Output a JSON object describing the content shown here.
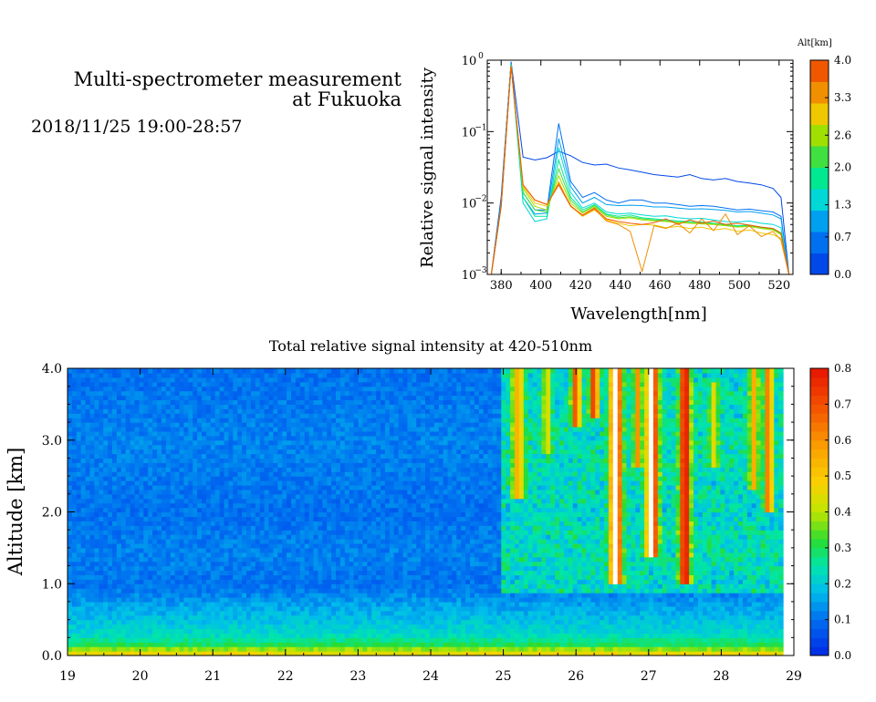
{
  "header": {
    "title_line1": "Multi-spectrometer measurement",
    "title_line2": "at Fukuoka",
    "date_range": "2018/11/25 19:00-28:57"
  },
  "spectrum_chart": {
    "ylabel": "Relative signal intensity",
    "xlabel": "Wavelength[nm]",
    "x_ticks": [
      "380",
      "400",
      "420",
      "440",
      "460",
      "480",
      "500",
      "520"
    ],
    "y_ticks": [
      {
        "base": "10",
        "exp": "0"
      },
      {
        "base": "10",
        "exp": "−1"
      },
      {
        "base": "10",
        "exp": "−2"
      },
      {
        "base": "10",
        "exp": "−3"
      }
    ],
    "colorbar_title": "Alt[km]",
    "colorbar_ticks": [
      "4.0",
      "3.3",
      "2.6",
      "2.0",
      "1.3",
      "0.7",
      "0.0"
    ]
  },
  "profile_chart": {
    "title": "Total relative signal intensity at 420-510nm",
    "ylabel": "Altitude [km]",
    "x_ticks": [
      "19",
      "20",
      "21",
      "22",
      "23",
      "24",
      "25",
      "26",
      "27",
      "28",
      "29"
    ],
    "y_ticks": [
      "0.0",
      "1.0",
      "2.0",
      "3.0",
      "4.0"
    ],
    "colorbar_ticks": [
      "0.0",
      "0.1",
      "0.2",
      "0.3",
      "0.4",
      "0.5",
      "0.6",
      "0.7",
      "0.8"
    ]
  },
  "chart_data": [
    {
      "type": "line",
      "title": "",
      "xlabel": "Wavelength[nm]",
      "ylabel": "Relative signal intensity",
      "y_scale": "log",
      "xlim": [
        373,
        527
      ],
      "ylim": [
        0.001,
        1
      ],
      "legend": "colorbar right, Alt[km] 0.0-4.0",
      "x": [
        375,
        380,
        385,
        391,
        397,
        403,
        409,
        415,
        421,
        427,
        433,
        439,
        445,
        451,
        457,
        463,
        469,
        475,
        481,
        487,
        493,
        499,
        505,
        511,
        517,
        521,
        525
      ],
      "series": [
        {
          "color": "#0048e8",
          "values": [
            0.001,
            0.012,
            0.95,
            0.044,
            0.04,
            0.043,
            0.053,
            0.046,
            0.037,
            0.034,
            0.035,
            0.031,
            0.029,
            0.027,
            0.025,
            0.024,
            0.023,
            0.025,
            0.022,
            0.021,
            0.022,
            0.02,
            0.019,
            0.018,
            0.016,
            0.012,
            0.001
          ]
        },
        {
          "color": "#0070f0",
          "values": [
            0.001,
            0.011,
            0.93,
            0.014,
            0.008,
            0.008,
            0.13,
            0.02,
            0.012,
            0.014,
            0.011,
            0.01,
            0.011,
            0.011,
            0.01,
            0.01,
            0.0095,
            0.009,
            0.0092,
            0.009,
            0.0085,
            0.008,
            0.0082,
            0.0078,
            0.0075,
            0.0065,
            0.001
          ]
        },
        {
          "color": "#00a0f0",
          "values": [
            0.001,
            0.01,
            0.9,
            0.012,
            0.007,
            0.0072,
            0.08,
            0.017,
            0.01,
            0.012,
            0.0095,
            0.0092,
            0.0093,
            0.0092,
            0.0088,
            0.0088,
            0.0085,
            0.0082,
            0.0083,
            0.0081,
            0.0079,
            0.0075,
            0.0076,
            0.0072,
            0.0068,
            0.006,
            0.001
          ]
        },
        {
          "color": "#00d8d8",
          "values": [
            0.001,
            0.009,
            0.88,
            0.01,
            0.0055,
            0.006,
            0.06,
            0.014,
            0.0085,
            0.01,
            0.0075,
            0.007,
            0.0072,
            0.0068,
            0.0065,
            0.0066,
            0.0062,
            0.006,
            0.0061,
            0.0058,
            0.0055,
            0.0054,
            0.0056,
            0.0052,
            0.005,
            0.0045,
            0.001
          ]
        },
        {
          "color": "#00e890",
          "values": [
            0.001,
            0.009,
            0.86,
            0.012,
            0.0065,
            0.0065,
            0.04,
            0.012,
            0.008,
            0.0095,
            0.007,
            0.0065,
            0.0068,
            0.0062,
            0.006,
            0.0058,
            0.0056,
            0.0055,
            0.0054,
            0.0052,
            0.005,
            0.0048,
            0.0049,
            0.0046,
            0.0044,
            0.0038,
            0.001
          ]
        },
        {
          "color": "#40e040",
          "values": [
            0.001,
            0.009,
            0.85,
            0.014,
            0.008,
            0.0075,
            0.03,
            0.011,
            0.0075,
            0.0092,
            0.0068,
            0.0062,
            0.0064,
            0.006,
            0.0058,
            0.0056,
            0.0054,
            0.0053,
            0.0052,
            0.0051,
            0.0049,
            0.0047,
            0.0048,
            0.0045,
            0.0043,
            0.0037,
            0.001
          ]
        },
        {
          "color": "#a0e000",
          "values": [
            0.001,
            0.009,
            0.84,
            0.016,
            0.009,
            0.008,
            0.024,
            0.01,
            0.0072,
            0.0088,
            0.0065,
            0.006,
            0.0062,
            0.0058,
            0.0056,
            0.0055,
            0.0053,
            0.0052,
            0.0051,
            0.005,
            0.0048,
            0.0046,
            0.0047,
            0.0044,
            0.0042,
            0.0036,
            0.001
          ]
        },
        {
          "color": "#f0c800",
          "values": [
            0.001,
            0.009,
            0.83,
            0.017,
            0.01,
            0.009,
            0.02,
            0.009,
            0.0065,
            0.008,
            0.0058,
            0.0052,
            0.0048,
            0.005,
            0.0049,
            0.0045,
            0.0047,
            0.0044,
            0.0046,
            0.0042,
            0.0044,
            0.004,
            0.0042,
            0.0038,
            0.0036,
            0.0032,
            0.001
          ]
        },
        {
          "color": "#f09000",
          "values": [
            0.001,
            0.009,
            0.82,
            0.018,
            0.011,
            0.0095,
            0.019,
            0.0092,
            0.0066,
            0.0082,
            0.0056,
            0.005,
            0.004,
            0.0011,
            0.0048,
            0.0044,
            0.0052,
            0.0038,
            0.006,
            0.0041,
            0.007,
            0.0036,
            0.0048,
            0.0034,
            0.004,
            0.003,
            0.001
          ]
        },
        {
          "color": "#f05800",
          "values": [
            0.001,
            0.009,
            0.82,
            0.018,
            0.011,
            0.0095,
            0.018,
            0.009,
            0.0068,
            0.0085,
            0.006,
            0.0055,
            0.0052,
            0.005,
            0.0053,
            0.006,
            0.005,
            0.0058,
            0.0052,
            0.0056,
            0.005,
            0.0052,
            0.0049,
            0.0046,
            0.0044,
            0.0038,
            0.001
          ]
        }
      ]
    },
    {
      "type": "heatmap",
      "title": "Total relative signal intensity at 420-510nm",
      "xlabel": "",
      "ylabel": "Altitude [km]",
      "xlim": [
        19,
        29
      ],
      "ylim": [
        0.0,
        4.0
      ],
      "color_range": [
        0.0,
        0.8
      ],
      "colormap": "blue-cyan-green-yellow-orange-red, white above 0.8",
      "x_extent": [
        19.0,
        28.85
      ],
      "background_profile": [
        {
          "alt": 0.0,
          "value": 0.5
        },
        {
          "alt": 0.15,
          "value": 0.3
        },
        {
          "alt": 0.3,
          "value": 0.22
        },
        {
          "alt": 0.6,
          "value": 0.17
        },
        {
          "alt": 1.0,
          "value": 0.1
        },
        {
          "alt": 1.4,
          "value": 0.12
        },
        {
          "alt": 2.0,
          "value": 0.1
        },
        {
          "alt": 3.0,
          "value": 0.12
        },
        {
          "alt": 4.0,
          "value": 0.1
        }
      ],
      "enhanced_columns": [
        {
          "time": 25.2,
          "top": 4.0,
          "bottom": 2.2,
          "value": 0.55,
          "width": 0.08
        },
        {
          "time": 25.6,
          "top": 4.0,
          "bottom": 2.8,
          "value": 0.45,
          "width": 0.06
        },
        {
          "time": 26.0,
          "top": 4.0,
          "bottom": 3.2,
          "value": 0.7,
          "width": 0.06
        },
        {
          "time": 26.25,
          "top": 4.0,
          "bottom": 3.3,
          "value": 0.75,
          "width": 0.06
        },
        {
          "time": 26.55,
          "top": 4.0,
          "bottom": 1.0,
          "value": 0.85,
          "width": 0.08
        },
        {
          "time": 26.85,
          "top": 4.0,
          "bottom": 2.6,
          "value": 0.6,
          "width": 0.05
        },
        {
          "time": 27.05,
          "top": 4.0,
          "bottom": 1.4,
          "value": 0.85,
          "width": 0.08
        },
        {
          "time": 27.5,
          "top": 4.0,
          "bottom": 1.0,
          "value": 0.85,
          "width": 0.07
        },
        {
          "time": 27.9,
          "top": 3.8,
          "bottom": 2.6,
          "value": 0.45,
          "width": 0.06
        },
        {
          "time": 28.45,
          "top": 4.0,
          "bottom": 2.3,
          "value": 0.55,
          "width": 0.06
        },
        {
          "time": 28.65,
          "top": 4.0,
          "bottom": 2.0,
          "value": 0.65,
          "width": 0.06
        }
      ]
    }
  ]
}
